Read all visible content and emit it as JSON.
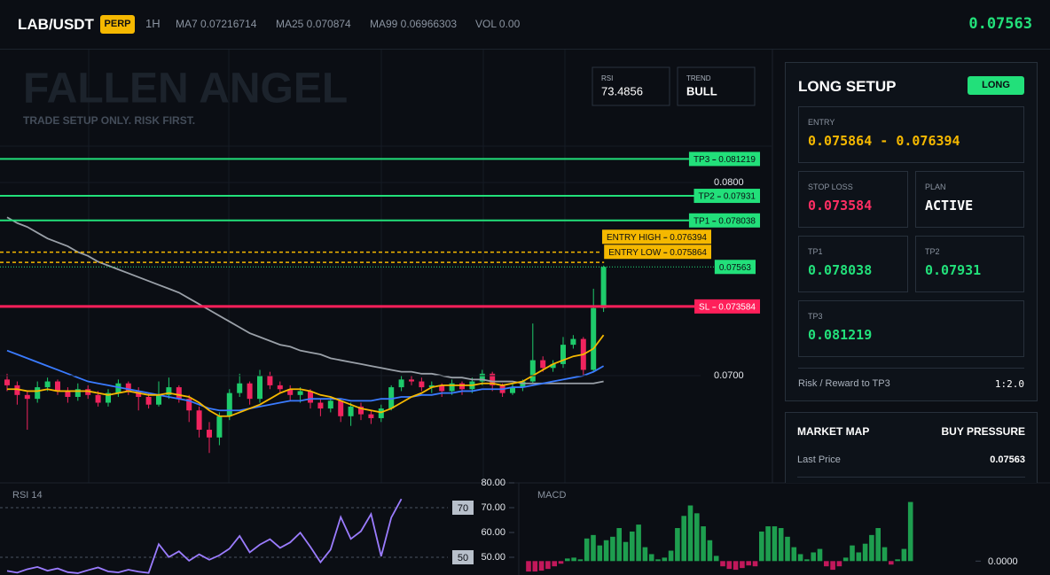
{
  "header": {
    "pair": "LAB/USDT",
    "badge": "PERP",
    "timeframe": "1H",
    "ma7": "MA7 0.07216714",
    "ma25": "MA25 0.070874",
    "ma99": "MA99 0.06966303",
    "vol": "VOL 0.00",
    "price": "0.07563"
  },
  "chart": {
    "watermark": "FALLEN ANGEL",
    "subtitle": "TRADE SETUP ONLY. RISK FIRST.",
    "rsi_box": {
      "label": "RSI",
      "value": "73.4856"
    },
    "trend_box": {
      "label": "TREND",
      "value": "BULL"
    },
    "ylim": [
      0.06445,
      0.08688
    ],
    "yticks": [
      {
        "value": 0.07,
        "label": "0.0700"
      },
      {
        "value": 0.08,
        "label": "0.0800"
      }
    ],
    "up_color": "#1ecb6b",
    "down_color": "#f0245e",
    "candles": [
      [
        0.0698,
        0.0701,
        0.0692,
        0.0695
      ],
      [
        0.0695,
        0.0697,
        0.0685,
        0.069
      ],
      [
        0.069,
        0.0692,
        0.0672,
        0.0688
      ],
      [
        0.0688,
        0.0697,
        0.0686,
        0.0694
      ],
      [
        0.0694,
        0.0699,
        0.0692,
        0.0697
      ],
      [
        0.0697,
        0.0698,
        0.069,
        0.0692
      ],
      [
        0.0692,
        0.0694,
        0.0686,
        0.0689
      ],
      [
        0.0689,
        0.0696,
        0.0687,
        0.0693
      ],
      [
        0.0693,
        0.0695,
        0.0688,
        0.069
      ],
      [
        0.069,
        0.0692,
        0.0684,
        0.0686
      ],
      [
        0.0686,
        0.0693,
        0.0684,
        0.0691
      ],
      [
        0.0691,
        0.0698,
        0.0689,
        0.0696
      ],
      [
        0.0696,
        0.0697,
        0.069,
        0.0692
      ],
      [
        0.0692,
        0.0694,
        0.0682,
        0.0689
      ],
      [
        0.0689,
        0.0691,
        0.0683,
        0.0685
      ],
      [
        0.0685,
        0.0697,
        0.0684,
        0.069
      ],
      [
        0.069,
        0.0699,
        0.0688,
        0.0694
      ],
      [
        0.0694,
        0.0695,
        0.0686,
        0.0688
      ],
      [
        0.0688,
        0.069,
        0.0676,
        0.0682
      ],
      [
        0.0682,
        0.0684,
        0.0668,
        0.0672
      ],
      [
        0.0672,
        0.0676,
        0.066,
        0.0668
      ],
      [
        0.0668,
        0.0681,
        0.0664,
        0.0679
      ],
      [
        0.0679,
        0.0693,
        0.0677,
        0.0691
      ],
      [
        0.0691,
        0.0701,
        0.0689,
        0.0696
      ],
      [
        0.0696,
        0.0697,
        0.0685,
        0.0688
      ],
      [
        0.0688,
        0.0703,
        0.0686,
        0.07
      ],
      [
        0.07,
        0.0702,
        0.0693,
        0.0695
      ],
      [
        0.0695,
        0.0697,
        0.0691,
        0.0693
      ],
      [
        0.0693,
        0.0695,
        0.0687,
        0.069
      ],
      [
        0.069,
        0.0694,
        0.0686,
        0.0692
      ],
      [
        0.0692,
        0.0693,
        0.0683,
        0.0686
      ],
      [
        0.0686,
        0.0688,
        0.0679,
        0.0683
      ],
      [
        0.0683,
        0.0689,
        0.0681,
        0.0687
      ],
      [
        0.0687,
        0.0688,
        0.0676,
        0.0679
      ],
      [
        0.0679,
        0.0686,
        0.0674,
        0.0684
      ],
      [
        0.0684,
        0.0686,
        0.0677,
        0.068
      ],
      [
        0.068,
        0.0682,
        0.0675,
        0.0678
      ],
      [
        0.0678,
        0.0685,
        0.0676,
        0.0683
      ],
      [
        0.0683,
        0.0695,
        0.0682,
        0.0694
      ],
      [
        0.0694,
        0.07,
        0.0692,
        0.0698
      ],
      [
        0.0698,
        0.07,
        0.0695,
        0.0697
      ],
      [
        0.0697,
        0.0699,
        0.0692,
        0.0694
      ],
      [
        0.0694,
        0.0697,
        0.0691,
        0.0695
      ],
      [
        0.0695,
        0.0696,
        0.0689,
        0.0692
      ],
      [
        0.0692,
        0.0698,
        0.069,
        0.0696
      ],
      [
        0.0696,
        0.0697,
        0.069,
        0.0693
      ],
      [
        0.0693,
        0.0699,
        0.0691,
        0.0697
      ],
      [
        0.0697,
        0.0703,
        0.0695,
        0.0701
      ],
      [
        0.0701,
        0.0702,
        0.0692,
        0.0695
      ],
      [
        0.0695,
        0.0696,
        0.0689,
        0.0691
      ],
      [
        0.0691,
        0.0696,
        0.069,
        0.0694
      ],
      [
        0.0694,
        0.0698,
        0.0692,
        0.0697
      ],
      [
        0.0697,
        0.0727,
        0.0696,
        0.0708
      ],
      [
        0.0708,
        0.071,
        0.0702,
        0.0704
      ],
      [
        0.0704,
        0.0708,
        0.0702,
        0.0706
      ],
      [
        0.0706,
        0.072,
        0.0704,
        0.0716
      ],
      [
        0.0716,
        0.0721,
        0.0714,
        0.0719
      ],
      [
        0.0719,
        0.072,
        0.07,
        0.0703
      ],
      [
        0.0703,
        0.0745,
        0.0702,
        0.0735
      ],
      [
        0.0735,
        0.0757,
        0.0733,
        0.07563
      ]
    ],
    "ma": [
      {
        "color": "#9aa0a8",
        "values": [
          0.0782,
          0.0779,
          0.0777,
          0.0774,
          0.0771,
          0.0769,
          0.0767,
          0.0764,
          0.0762,
          0.0759,
          0.0757,
          0.0755,
          0.0753,
          0.0751,
          0.0749,
          0.0747,
          0.0745,
          0.0743,
          0.074,
          0.0737,
          0.0734,
          0.0731,
          0.0728,
          0.0725,
          0.0722,
          0.072,
          0.0718,
          0.0716,
          0.0715,
          0.0713,
          0.0712,
          0.0711,
          0.0709,
          0.0708,
          0.0707,
          0.0706,
          0.0705,
          0.0704,
          0.0703,
          0.0702,
          0.0702,
          0.0701,
          0.0701,
          0.07,
          0.0699,
          0.0699,
          0.0698,
          0.0698,
          0.0697,
          0.0697,
          0.0697,
          0.0696,
          0.0696,
          0.0696,
          0.0696,
          0.0696,
          0.0696,
          0.0696,
          0.0696,
          0.0697
        ]
      },
      {
        "color": "#3a7bff",
        "values": [
          0.0713,
          0.0711,
          0.0709,
          0.0707,
          0.0705,
          0.0703,
          0.0701,
          0.0699,
          0.0697,
          0.0696,
          0.0695,
          0.0694,
          0.0693,
          0.0692,
          0.0691,
          0.069,
          0.0689,
          0.0688,
          0.0687,
          0.0685,
          0.0683,
          0.0682,
          0.0682,
          0.0682,
          0.0683,
          0.0684,
          0.0685,
          0.0686,
          0.0687,
          0.0687,
          0.0688,
          0.0688,
          0.0688,
          0.0688,
          0.0687,
          0.0687,
          0.0687,
          0.0688,
          0.0688,
          0.0689,
          0.0689,
          0.069,
          0.069,
          0.0691,
          0.0691,
          0.0692,
          0.0692,
          0.0693,
          0.0693,
          0.0693,
          0.0694,
          0.0694,
          0.0695,
          0.0696,
          0.0697,
          0.0698,
          0.0699,
          0.07,
          0.0702,
          0.0705
        ]
      },
      {
        "color": "#f5b800",
        "values": [
          0.0693,
          0.0693,
          0.0692,
          0.0692,
          0.0693,
          0.0692,
          0.0692,
          0.0692,
          0.0692,
          0.0691,
          0.069,
          0.0691,
          0.0692,
          0.0691,
          0.069,
          0.069,
          0.0691,
          0.069,
          0.0689,
          0.0686,
          0.0682,
          0.0679,
          0.0679,
          0.0681,
          0.0683,
          0.0685,
          0.0688,
          0.0691,
          0.0693,
          0.0693,
          0.0692,
          0.069,
          0.0689,
          0.0687,
          0.0685,
          0.0683,
          0.0682,
          0.0681,
          0.0683,
          0.0686,
          0.0689,
          0.0691,
          0.0694,
          0.0695,
          0.0695,
          0.0695,
          0.0695,
          0.0696,
          0.0696,
          0.0695,
          0.0696,
          0.0697,
          0.07,
          0.0703,
          0.0706,
          0.0708,
          0.071,
          0.0711,
          0.0714,
          0.0721
        ]
      }
    ],
    "levels": [
      {
        "name": "TP3",
        "value": 0.081219,
        "color": "#22e07a"
      },
      {
        "name": "TP2",
        "value": 0.07931,
        "color": "#22e07a"
      },
      {
        "name": "TP1",
        "value": 0.078038,
        "color": "#22e07a"
      },
      {
        "name": "ENTRY HIGH",
        "value": 0.076394,
        "color": "#f5b800",
        "dashed": true
      },
      {
        "name": "ENTRY LOW",
        "value": 0.075864,
        "color": "#f5b800",
        "dashed": true
      },
      {
        "name": "SL",
        "value": 0.073584,
        "color": "#ff1f5a"
      }
    ],
    "last_price": {
      "value": 0.07563,
      "color": "#22e07a"
    }
  },
  "rsi": {
    "title": "RSI 14",
    "color": "#9b7cff",
    "ylim": [
      42.86,
      80
    ],
    "yticks": [
      {
        "value": 80,
        "label": "80.00"
      },
      {
        "value": 70,
        "label": "70.00"
      },
      {
        "value": 60,
        "label": "60.00"
      },
      {
        "value": 50,
        "label": "50.00"
      }
    ],
    "levels": [
      70,
      50
    ],
    "values": [
      44.5,
      43.8,
      45.2,
      46.1,
      44.6,
      45.5,
      44.0,
      43.6,
      44.8,
      45.9,
      44.3,
      43.9,
      45.0,
      44.2,
      43.7,
      55.3,
      50.1,
      52.4,
      48.6,
      51.2,
      49.0,
      50.8,
      53.5,
      58.6,
      52.0,
      55.1,
      57.3,
      53.8,
      56.0,
      59.9,
      54.2,
      48.0,
      53.1,
      66.2,
      57.4,
      60.5,
      67.4,
      50.4,
      66.0,
      73.4856
    ]
  },
  "macd": {
    "title": "MACD",
    "up_color": "#1e9e4f",
    "down_color": "#c2185b",
    "ylim": [
      -0.00016,
      0.0009
    ],
    "yticks": [
      {
        "value": 0,
        "label": "0.0000"
      }
    ],
    "values": [
      -0.00012,
      -0.00012,
      -0.00011,
      -9e-05,
      -6e-05,
      -3e-05,
      3e-05,
      4e-05,
      2e-05,
      0.00026,
      0.0003,
      0.00018,
      0.00024,
      0.00028,
      0.00038,
      0.00022,
      0.00034,
      0.00042,
      0.00016,
      8e-05,
      2e-05,
      4e-05,
      0.00012,
      0.00038,
      0.00052,
      0.00064,
      0.00055,
      0.0004,
      0.00024,
      6e-05,
      -6e-05,
      -9e-05,
      -0.0001,
      -8e-05,
      -5e-05,
      -6e-05,
      0.00034,
      0.0004,
      0.0004,
      0.00038,
      0.00028,
      0.00016,
      8e-05,
      2e-05,
      0.0001,
      0.00014,
      -6e-05,
      -0.0001,
      -6e-05,
      4e-05,
      0.00018,
      0.0001,
      0.0002,
      0.0003,
      0.00038,
      0.00016,
      -4e-05,
      2e-05,
      0.00014,
      0.00068
    ]
  },
  "setup": {
    "title": "LONG SETUP",
    "badge": "LONG",
    "entry": {
      "label": "ENTRY",
      "value": "0.075864 - 0.076394"
    },
    "stop_loss": {
      "label": "STOP LOSS",
      "value": "0.073584"
    },
    "plan": {
      "label": "PLAN",
      "value": "ACTIVE"
    },
    "tp1": {
      "label": "TP1",
      "value": "0.078038"
    },
    "tp2": {
      "label": "TP2",
      "value": "0.07931"
    },
    "tp3": {
      "label": "TP3",
      "value": "0.081219"
    },
    "rr": {
      "label": "Risk / Reward to TP3",
      "value": "1:2.0"
    }
  },
  "market_map": {
    "title": "MARKET MAP",
    "status": "BUY PRESSURE",
    "rows": [
      {
        "label": "Last Price",
        "value": "0.07563"
      }
    ]
  }
}
